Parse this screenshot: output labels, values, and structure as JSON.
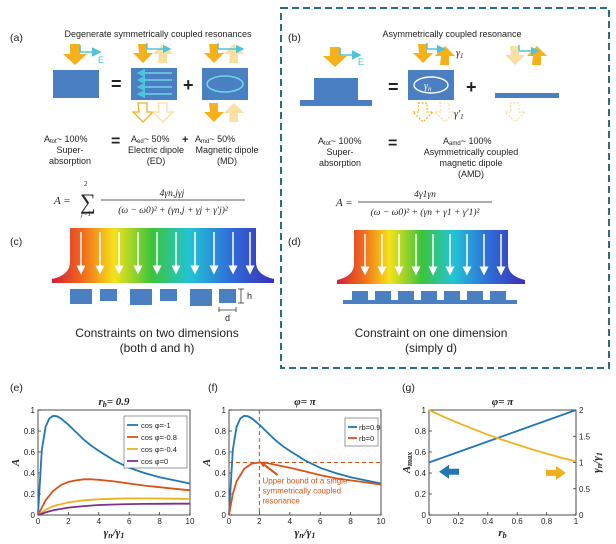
{
  "panel_labels": {
    "a": "(a)",
    "b": "(b)",
    "c": "(c)",
    "d": "(d)",
    "e": "(e)",
    "f": "(f)",
    "g": "(g)"
  },
  "a": {
    "title": "Degenerate symmetrically coupled resonances",
    "e_label": "E",
    "eq1": "=",
    "plus": "+",
    "eq2": "=",
    "tot_line1": "A",
    "tot_sub": "tot",
    "tot_rest": "~ 100%",
    "tot_line2": "Super-",
    "tot_line3": "absorption",
    "ed_a": "A",
    "ed_sub": "ed",
    "ed_rest": "~ 50%",
    "ed_label": "Electric dipole",
    "ed_abbr": "(ED)",
    "plus2": "+",
    "md_a": "A",
    "md_sub": "md",
    "md_rest": "~ 50%",
    "md_label": "Magnetic dipole",
    "md_abbr": "(MD)",
    "formula_lhs": "A =",
    "formula_sum_top": "2",
    "formula_sum_bot": "j=1",
    "formula_num": "4γn,jγj",
    "formula_den": "(ω − ω0)² + (γn,j + γj + γ′j)²"
  },
  "b": {
    "title": "Asymmetrically coupled resonance",
    "e_label": "E",
    "gamma1": "γ1",
    "gamma_n": "γn",
    "gamma1p": "γ′1",
    "eq1": "=",
    "plus": "+",
    "eq2": "=",
    "tot_line1": "A",
    "tot_sub": "tot",
    "tot_rest": "~ 100%",
    "tot_line2": "Super-",
    "tot_line3": "absorption",
    "amd_a": "A",
    "amd_sub": "amd",
    "amd_rest": "~ 100%",
    "amd_line1": "Asymmetrically coupled",
    "amd_line2": "magnetic dipole",
    "amd_line3": "(AMD)",
    "formula_lhs": "A =",
    "formula_num": "4γ1γn",
    "formula_den": "(ω − ω0)² + (γn + γ1 + γ′1)²"
  },
  "c": {
    "caption1": "Constraints on two dimensions",
    "caption2": "(both d and h)",
    "h_label": "h",
    "d_label": "d"
  },
  "d": {
    "caption1": "Constraint on one dimension",
    "caption2": "(simply d)"
  },
  "chart_data": [
    {
      "id": "e",
      "type": "line",
      "title": "rb= 0.9",
      "xlabel": "γn/γ1",
      "ylabel": "A",
      "xlim": [
        0,
        10
      ],
      "ylim": [
        0,
        1
      ],
      "xticks": [
        0,
        2,
        4,
        6,
        8,
        10
      ],
      "yticks": [
        0,
        0.2,
        0.4,
        0.6,
        0.8,
        1
      ],
      "legend": "top-right",
      "series": [
        {
          "name": "cos φ=-1",
          "color": "#1f77b4",
          "x": [
            0,
            0.25,
            0.5,
            0.75,
            1,
            1.25,
            1.5,
            2,
            2.5,
            3,
            3.5,
            4,
            5,
            6,
            7,
            8,
            9,
            10
          ],
          "y": [
            0,
            0.62,
            0.84,
            0.92,
            0.945,
            0.94,
            0.92,
            0.86,
            0.79,
            0.72,
            0.66,
            0.61,
            0.52,
            0.45,
            0.4,
            0.36,
            0.33,
            0.3
          ]
        },
        {
          "name": "cos φ=-0.8",
          "color": "#d95319",
          "x": [
            0,
            0.5,
            1,
            1.5,
            2,
            2.5,
            3,
            3.5,
            4,
            5,
            6,
            7,
            8,
            9,
            10
          ],
          "y": [
            0,
            0.14,
            0.23,
            0.285,
            0.315,
            0.33,
            0.34,
            0.34,
            0.335,
            0.32,
            0.3,
            0.28,
            0.265,
            0.25,
            0.235
          ]
        },
        {
          "name": "cos φ=-0.4",
          "color": "#edb120",
          "x": [
            0,
            0.5,
            1,
            2,
            3,
            4,
            5,
            6,
            7,
            8,
            9,
            10
          ],
          "y": [
            0,
            0.05,
            0.085,
            0.12,
            0.14,
            0.15,
            0.155,
            0.158,
            0.158,
            0.157,
            0.155,
            0.152
          ]
        },
        {
          "name": "cos φ=0",
          "color": "#7e2f8e",
          "x": [
            0,
            0.5,
            1,
            2,
            3,
            4,
            5,
            6,
            7,
            8,
            9,
            10
          ],
          "y": [
            0,
            0.025,
            0.045,
            0.07,
            0.085,
            0.095,
            0.1,
            0.104,
            0.106,
            0.107,
            0.108,
            0.108
          ]
        }
      ]
    },
    {
      "id": "f",
      "type": "line",
      "title": "φ= π",
      "xlabel": "γn/γ1",
      "ylabel": "A",
      "xlim": [
        0,
        10
      ],
      "ylim": [
        0,
        1
      ],
      "xticks": [
        0,
        2,
        4,
        6,
        8,
        10
      ],
      "yticks": [
        0,
        0.2,
        0.4,
        0.6,
        0.8,
        1
      ],
      "legend": "top-right",
      "annotation": "Upper bound of a single symmetrically coupled resonance",
      "annotation_lines": [
        "Upper bound of a single",
        "symmetrically coupled",
        "resonance"
      ],
      "hline": 0.5,
      "vline": 2,
      "series": [
        {
          "name": "rb=0.9",
          "color": "#1f77b4",
          "x": [
            0,
            0.25,
            0.5,
            0.75,
            1,
            1.25,
            1.5,
            2,
            2.5,
            3,
            3.5,
            4,
            5,
            6,
            7,
            8,
            9,
            10
          ],
          "y": [
            0,
            0.62,
            0.84,
            0.92,
            0.945,
            0.94,
            0.92,
            0.86,
            0.79,
            0.72,
            0.66,
            0.61,
            0.52,
            0.45,
            0.4,
            0.36,
            0.33,
            0.3
          ]
        },
        {
          "name": "rb=0",
          "color": "#d95319",
          "x": [
            0,
            0.25,
            0.5,
            1,
            1.5,
            2,
            2.5,
            3,
            4,
            5,
            6,
            7,
            8,
            9,
            10
          ],
          "y": [
            0,
            0.2,
            0.32,
            0.44,
            0.49,
            0.5,
            0.495,
            0.48,
            0.45,
            0.415,
            0.38,
            0.35,
            0.33,
            0.31,
            0.29
          ]
        }
      ]
    },
    {
      "id": "g",
      "type": "line",
      "title": "φ= π",
      "xlabel": "rb",
      "ylabel": "Amax",
      "ylabel_right": "γn/γ1",
      "xlim": [
        0,
        1
      ],
      "ylim": [
        0,
        1
      ],
      "ylim_right": [
        0,
        2
      ],
      "xticks": [
        0,
        0.2,
        0.4,
        0.6,
        0.8,
        1
      ],
      "yticks": [
        0,
        0.2,
        0.4,
        0.6,
        0.8,
        1
      ],
      "yticks_right": [
        0,
        0.5,
        1,
        1.5,
        2
      ],
      "series": [
        {
          "name": "Amax",
          "axis": "left",
          "color": "#1f77b4",
          "x": [
            0,
            0.2,
            0.4,
            0.6,
            0.8,
            1
          ],
          "y": [
            0.5,
            0.6,
            0.7,
            0.8,
            0.9,
            1.0
          ]
        },
        {
          "name": "γn/γ1",
          "axis": "right",
          "color": "#edb120",
          "x": [
            0,
            0.1,
            0.2,
            0.3,
            0.4,
            0.5,
            0.6,
            0.7,
            0.8,
            0.9,
            1
          ],
          "y": [
            2.0,
            1.87,
            1.75,
            1.64,
            1.53,
            1.43,
            1.34,
            1.25,
            1.17,
            1.09,
            1.02
          ]
        }
      ]
    }
  ]
}
